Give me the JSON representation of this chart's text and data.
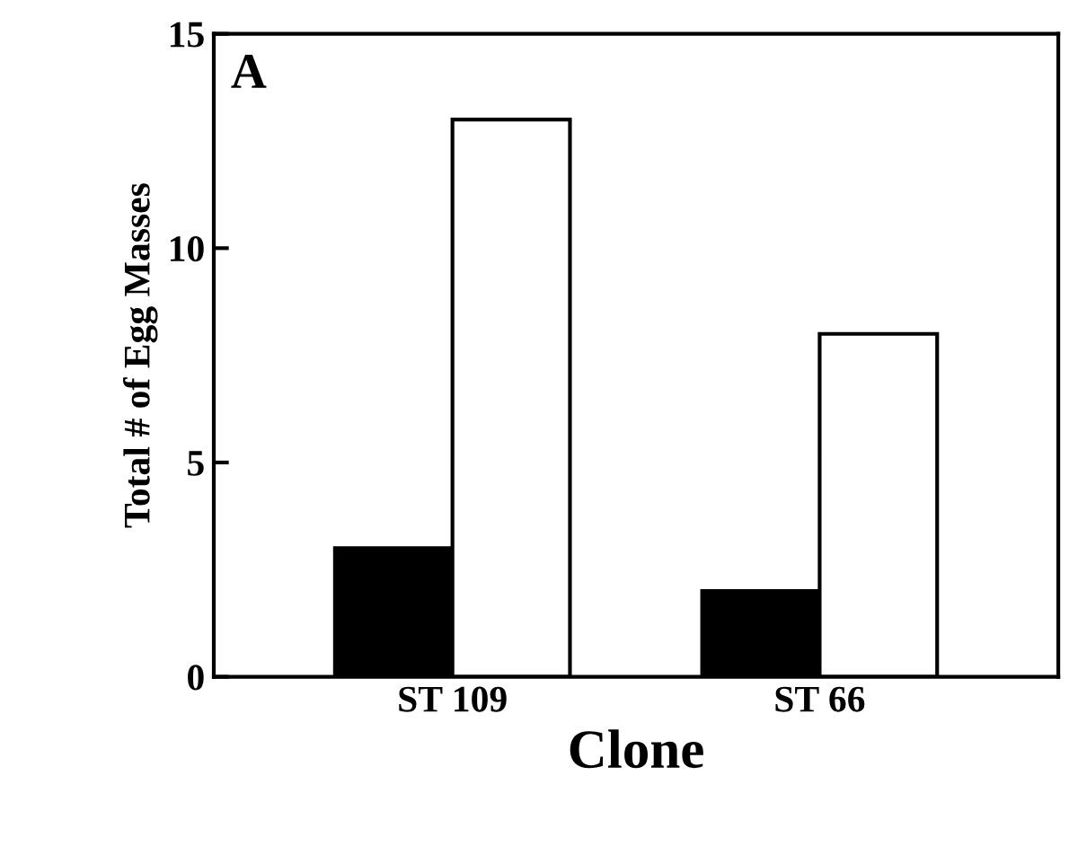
{
  "chart_data": {
    "type": "bar",
    "xlabel": "Clone",
    "ylabel": "Total # of Egg Masses",
    "annotations": [
      "A"
    ],
    "categories": [
      "ST 109",
      "ST 66"
    ],
    "series": [
      {
        "color": "#000000",
        "values": [
          3,
          2
        ]
      },
      {
        "color": "#ffffff",
        "values": [
          13,
          8
        ]
      }
    ],
    "ylim": [
      0,
      15
    ],
    "yticks": [
      0,
      5,
      10,
      15
    ]
  }
}
